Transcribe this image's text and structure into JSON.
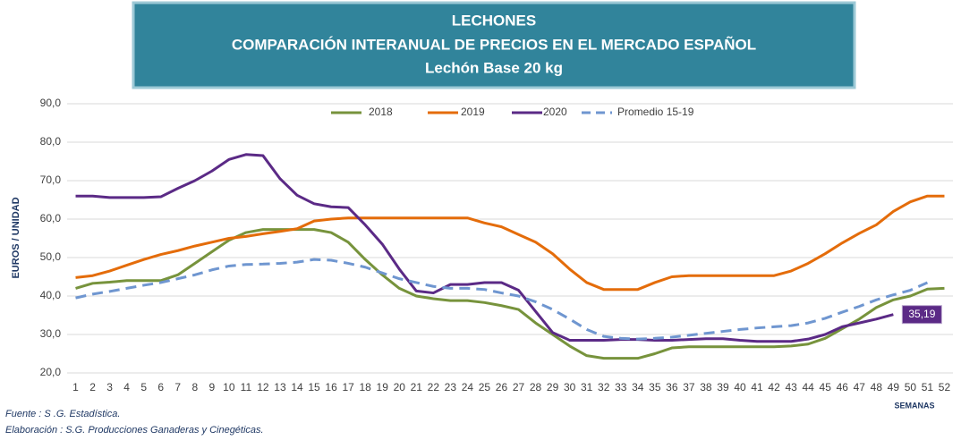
{
  "chart_data": {
    "type": "line",
    "title": [
      "LECHONES",
      "COMPARACIÓN INTERANUAL DE PRECIOS EN EL MERCADO ESPAÑOL",
      "Lechón Base 20 kg"
    ],
    "y_label": "EUROS / UNIDAD",
    "x_label": "SEMANAS",
    "categories": [
      "1",
      "2",
      "3",
      "4",
      "5",
      "6",
      "7",
      "8",
      "9",
      "10",
      "11",
      "12",
      "13",
      "14",
      "15",
      "16",
      "17",
      "18",
      "19",
      "20",
      "21",
      "22",
      "23",
      "24",
      "25",
      "26",
      "27",
      "28",
      "29",
      "30",
      "31",
      "32",
      "33",
      "34",
      "35",
      "36",
      "37",
      "38",
      "39",
      "40",
      "41",
      "42",
      "43",
      "44",
      "45",
      "46",
      "47",
      "48",
      "49",
      "50",
      "51",
      "52"
    ],
    "ylim": [
      20,
      90
    ],
    "yticks": [
      {
        "value": 20,
        "label": "20,0"
      },
      {
        "value": 30,
        "label": "30,0"
      },
      {
        "value": 40,
        "label": "40,0"
      },
      {
        "value": 50,
        "label": "50,0"
      },
      {
        "value": 60,
        "label": "60,0"
      },
      {
        "value": 70,
        "label": "70,0"
      },
      {
        "value": 80,
        "label": "80,0"
      },
      {
        "value": 90,
        "label": "90,0"
      }
    ],
    "grid": true,
    "legend": "top",
    "series": [
      {
        "name": "2018",
        "color": "#77933c",
        "dash": false,
        "values": [
          42,
          43.3,
          43.6,
          44,
          44,
          44,
          45.5,
          48.5,
          51.5,
          54.5,
          56.5,
          57.3,
          57.3,
          57.3,
          57.3,
          56.5,
          54,
          49.5,
          45.5,
          42,
          40,
          39.3,
          38.8,
          38.8,
          38.3,
          37.5,
          36.5,
          33,
          30,
          27,
          24.5,
          23.8,
          23.8,
          23.8,
          25,
          26.5,
          26.8,
          26.8,
          26.8,
          26.8,
          26.8,
          26.8,
          27,
          27.5,
          29,
          31.5,
          34,
          37,
          39,
          40,
          41.8,
          42
        ]
      },
      {
        "name": "2019",
        "color": "#e46c0a",
        "dash": false,
        "values": [
          44.8,
          45.3,
          46.5,
          48,
          49.5,
          50.8,
          51.8,
          53,
          54,
          55,
          55.5,
          56.2,
          56.8,
          57.5,
          59.5,
          60,
          60.3,
          60.3,
          60.3,
          60.3,
          60.3,
          60.3,
          60.3,
          60.3,
          59,
          58,
          56,
          54,
          51,
          47,
          43.5,
          41.7,
          41.7,
          41.7,
          43.5,
          45,
          45.3,
          45.3,
          45.3,
          45.3,
          45.3,
          45.3,
          46.5,
          48.5,
          51,
          53.8,
          56.3,
          58.5,
          62,
          64.5,
          66,
          66
        ]
      },
      {
        "name": "2020",
        "color": "#5b2a86",
        "dash": false,
        "values": [
          66,
          66,
          65.6,
          65.6,
          65.6,
          65.8,
          68,
          70,
          72.5,
          75.5,
          76.8,
          76.5,
          70.5,
          66.2,
          64,
          63.2,
          63,
          58.5,
          53.5,
          47,
          41.3,
          40.8,
          43,
          43,
          43.5,
          43.5,
          41.5,
          36,
          30.5,
          28.5,
          28.5,
          28.5,
          28.7,
          28.7,
          28.5,
          28.5,
          28.7,
          28.9,
          28.9,
          28.5,
          28.2,
          28.2,
          28.2,
          28.8,
          30,
          32,
          33,
          34,
          35.19,
          null,
          null,
          null
        ],
        "value_labels": [
          null,
          null,
          null,
          null,
          null,
          null,
          null,
          null,
          null,
          null,
          null,
          null,
          null,
          null,
          null,
          null,
          null,
          null,
          null,
          null,
          null,
          null,
          null,
          null,
          null,
          null,
          null,
          null,
          null,
          null,
          null,
          null,
          null,
          null,
          null,
          null,
          null,
          null,
          null,
          null,
          null,
          null,
          null,
          null,
          null,
          null,
          null,
          null,
          "35,19",
          null,
          null,
          null
        ]
      },
      {
        "name": "Promedio 15-19",
        "color": "#6f96d0",
        "dash": true,
        "values": [
          39.5,
          40.5,
          41.2,
          42,
          42.8,
          43.5,
          44.5,
          45.5,
          46.8,
          47.8,
          48.2,
          48.3,
          48.5,
          48.8,
          49.5,
          49.3,
          48.5,
          47.5,
          46,
          44.5,
          43.5,
          42.5,
          42,
          42,
          41.7,
          40.8,
          40,
          38.5,
          36.5,
          34,
          31.3,
          29.5,
          29,
          28.8,
          29,
          29.3,
          29.8,
          30.3,
          30.8,
          31.3,
          31.7,
          32,
          32.3,
          33,
          34.2,
          35.8,
          37.3,
          39,
          40.3,
          41.5,
          43.5,
          null
        ]
      }
    ]
  },
  "footnotes": [
    "Fuente :  S .G. Estadística.",
    "Elaboración : S.G. Producciones Ganaderas y Cinegéticas."
  ]
}
